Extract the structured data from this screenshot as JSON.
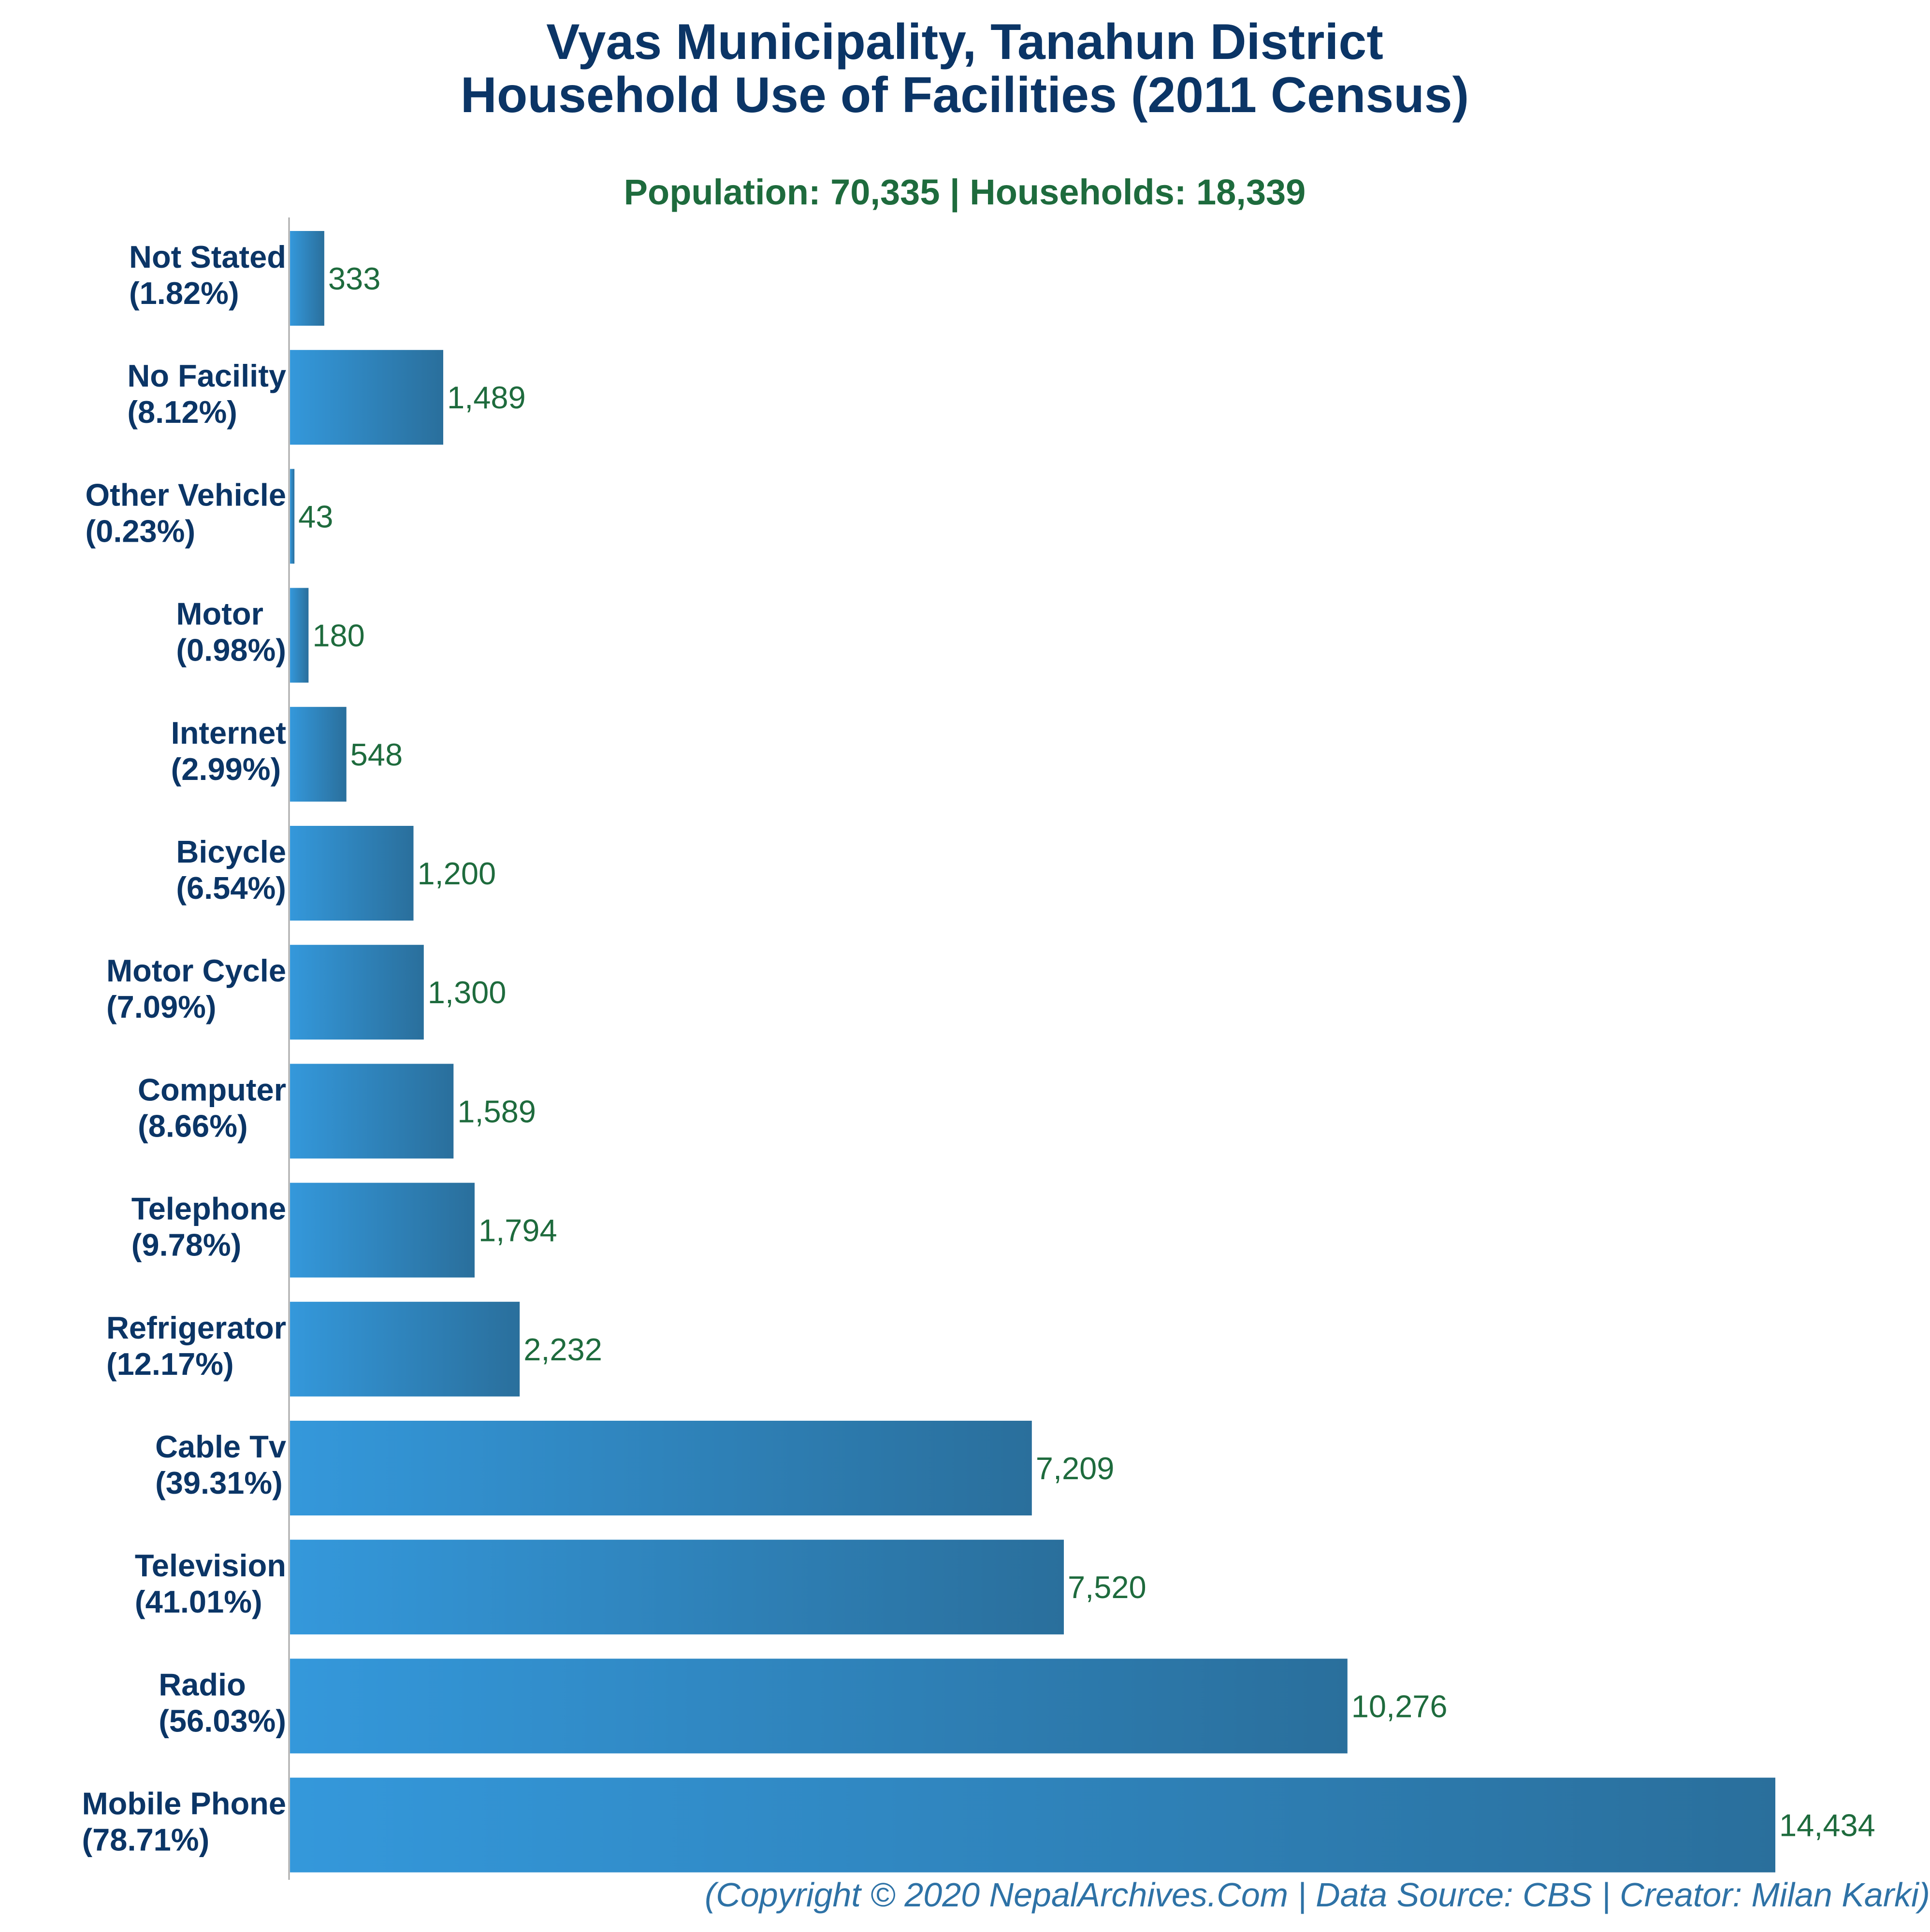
{
  "chart_data": {
    "type": "bar",
    "orientation": "horizontal",
    "title": "Vyas Municipality, Tanahun District",
    "title_line2": "Household Use of Facilities (2011 Census)",
    "subtitle": "Population: 70,335 | Households: 18,339",
    "footer": "(Copyright © 2020 NepalArchives.Com | Data Source: CBS | Creator: Milan Karki)",
    "categories": [
      "Not Stated",
      "No Facility",
      "Other Vehicle",
      "Motor",
      "Internet",
      "Bicycle",
      "Motor Cycle",
      "Computer",
      "Telephone",
      "Refrigerator",
      "Cable Tv",
      "Television",
      "Radio",
      "Mobile Phone"
    ],
    "percent_labels": [
      "(1.82%)",
      "(8.12%)",
      "(0.23%)",
      "(0.98%)",
      "(2.99%)",
      "(6.54%)",
      "(7.09%)",
      "(8.66%)",
      "(9.78%)",
      "(12.17%)",
      "(39.31%)",
      "(41.01%)",
      "(56.03%)",
      "(78.71%)"
    ],
    "values": [
      333,
      1489,
      43,
      180,
      548,
      1200,
      1300,
      1589,
      1794,
      2232,
      7209,
      7520,
      10276,
      14434
    ],
    "value_labels": [
      "333",
      "1,489",
      "43",
      "180",
      "548",
      "1,200",
      "1,300",
      "1,589",
      "1,794",
      "2,232",
      "7,209",
      "7,520",
      "10,276",
      "14,434"
    ],
    "xlabel": "",
    "ylabel": "",
    "xlim": [
      0,
      14434
    ],
    "grid": false,
    "legend": "none",
    "colors": {
      "bar_start": "#3498db",
      "bar_end": "#2a6f9c",
      "title": "#0b3566",
      "subtitle": "#1e6b3d",
      "value_text": "#1e6b3d",
      "category_text": "#0b3566",
      "footer_text": "#2e72a6",
      "axis": "#aaaaaa"
    }
  }
}
